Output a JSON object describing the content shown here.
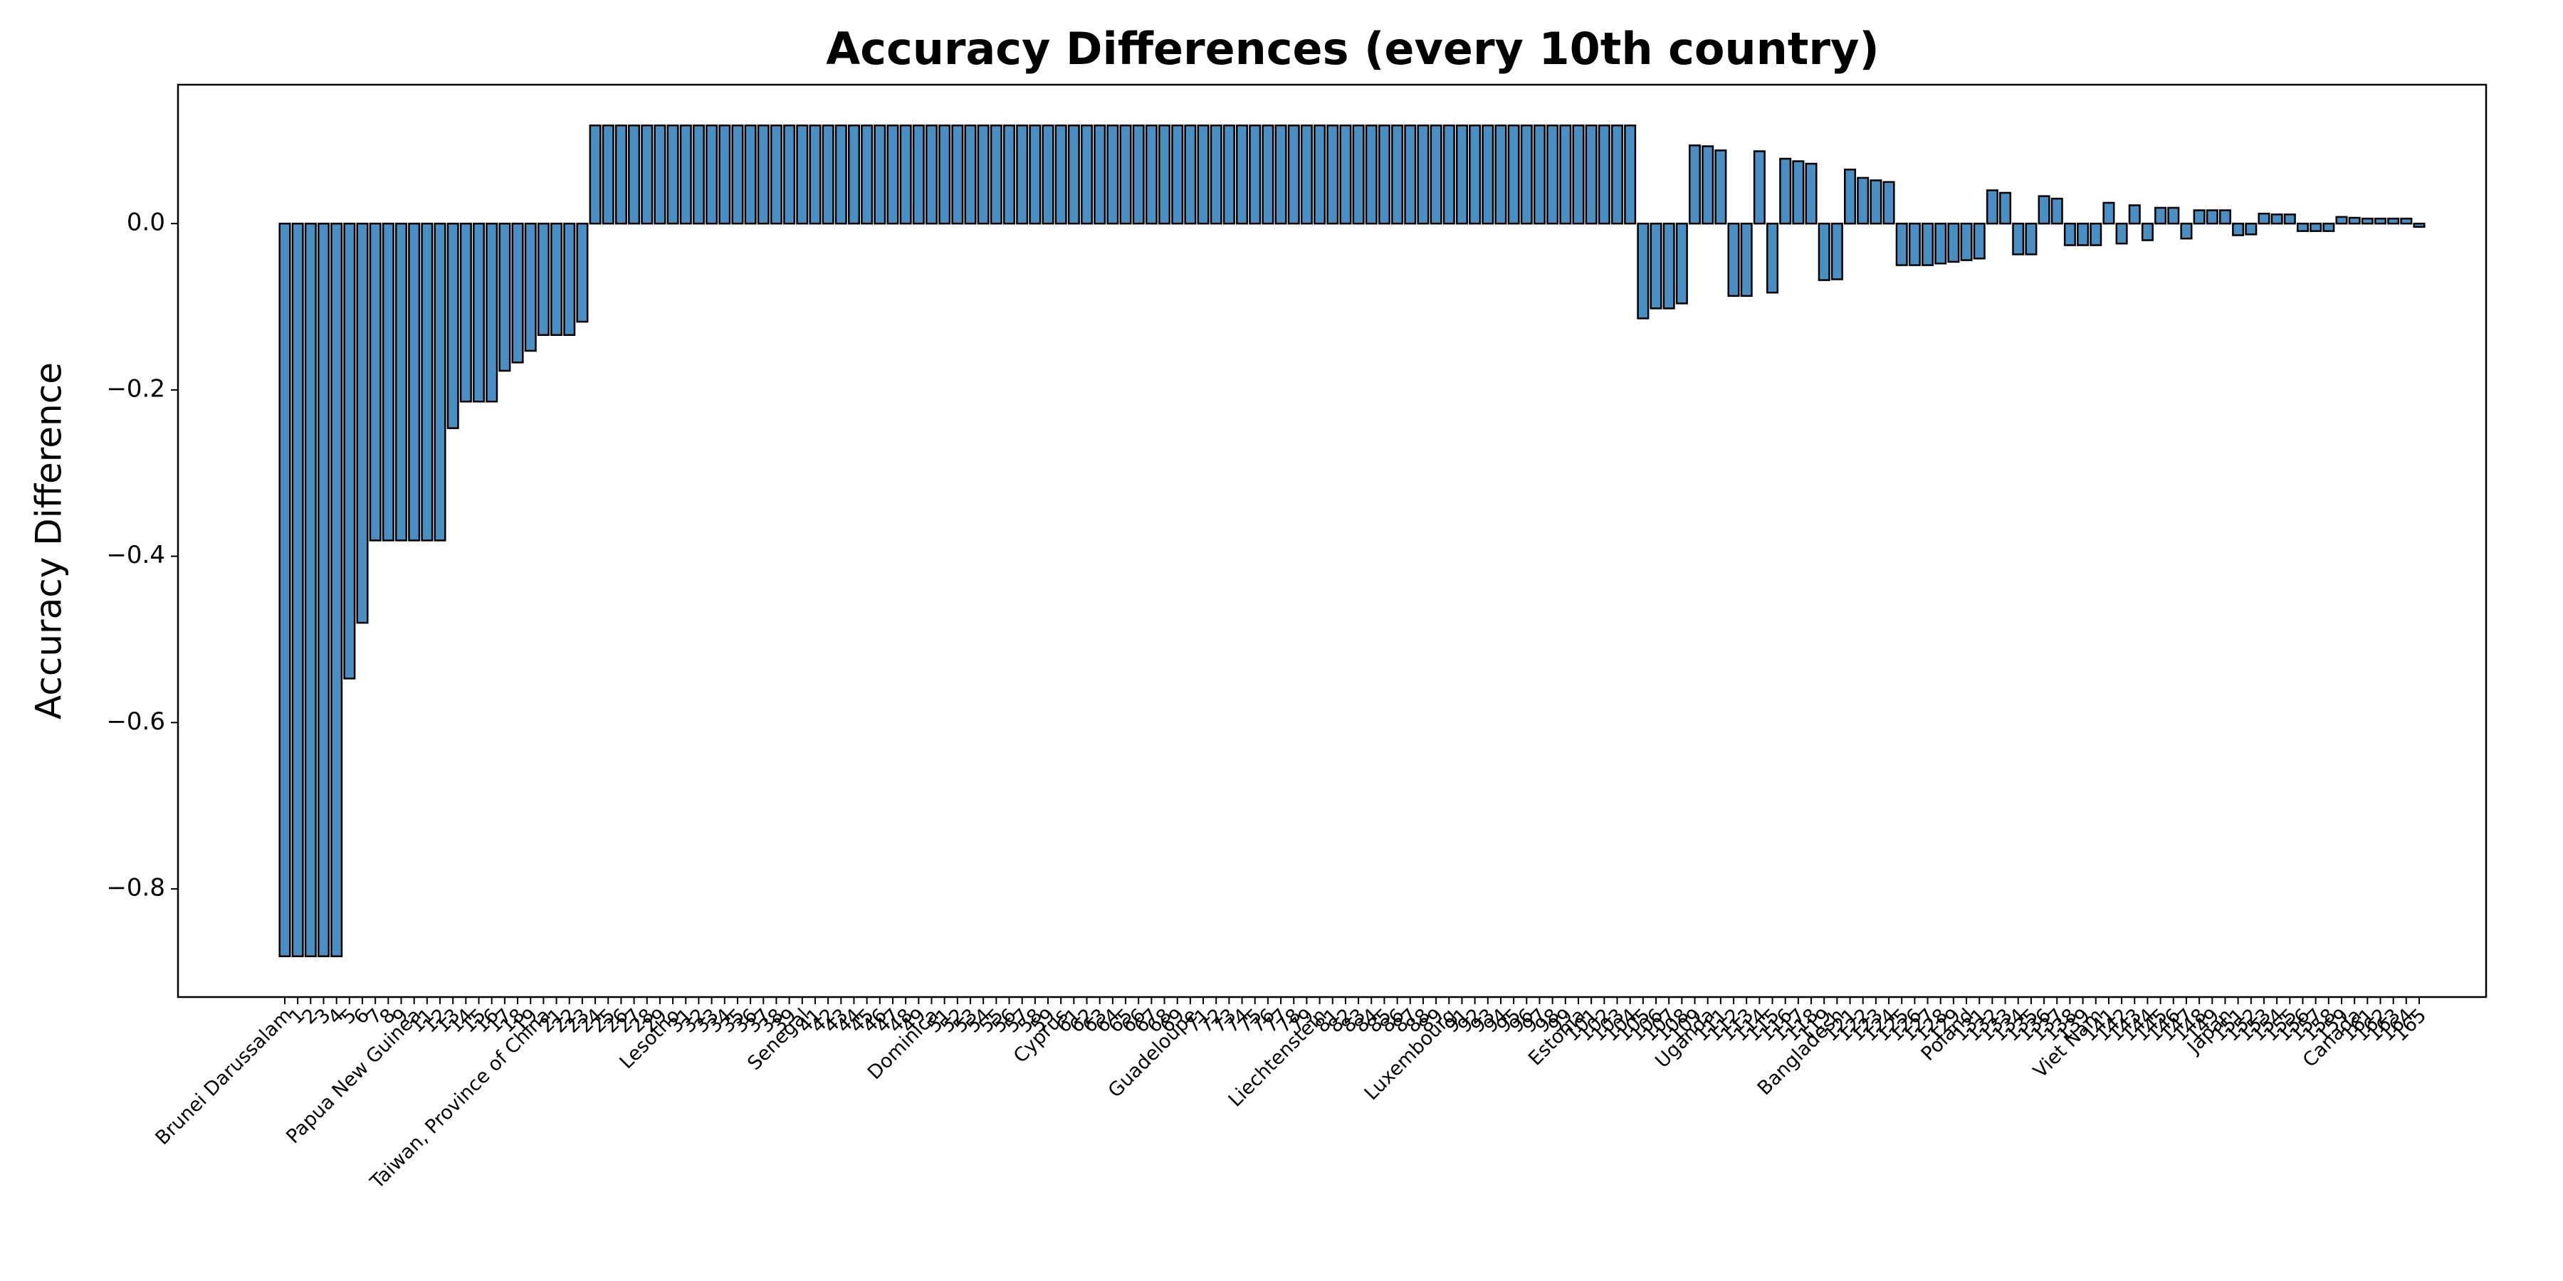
{
  "chart_data": {
    "type": "bar",
    "title": "Accuracy Differences (every 10th country)",
    "ylabel": "Accuracy Difference",
    "color": "#4a8fc4",
    "edgecolor": "#000000",
    "grid": false,
    "ylim": [
      -0.93,
      0.167
    ],
    "yticks": [
      {
        "value": -0.8,
        "label": "−0.8"
      },
      {
        "value": -0.6,
        "label": "−0.6"
      },
      {
        "value": -0.4,
        "label": "−0.4"
      },
      {
        "value": -0.2,
        "label": "−0.2"
      },
      {
        "value": 0,
        "label": "0.0"
      }
    ],
    "categories": [
      "Brunei Darussalam",
      "1",
      "2",
      "3",
      "4",
      "5",
      "6",
      "7",
      "8",
      "9",
      "Papua New Guinea",
      "11",
      "12",
      "13",
      "14",
      "15",
      "16",
      "17",
      "18",
      "19",
      "Taiwan, Province of China",
      "21",
      "22",
      "23",
      "24",
      "25",
      "26",
      "27",
      "28",
      "29",
      "Lesotho",
      "31",
      "32",
      "33",
      "34",
      "35",
      "36",
      "37",
      "38",
      "39",
      "Senegal",
      "41",
      "42",
      "43",
      "44",
      "45",
      "46",
      "47",
      "48",
      "49",
      "Dominica",
      "51",
      "52",
      "53",
      "54",
      "55",
      "56",
      "57",
      "58",
      "59",
      "Cyprus",
      "61",
      "62",
      "63",
      "64",
      "65",
      "66",
      "67",
      "68",
      "69",
      "Guadeloupe",
      "71",
      "72",
      "73",
      "74",
      "75",
      "76",
      "77",
      "78",
      "79",
      "Liechtenstein",
      "81",
      "82",
      "83",
      "84",
      "85",
      "86",
      "87",
      "88",
      "89",
      "Luxembourg",
      "91",
      "92",
      "93",
      "94",
      "95",
      "96",
      "97",
      "98",
      "99",
      "Estonia",
      "101",
      "102",
      "103",
      "104",
      "105",
      "106",
      "107",
      "108",
      "109",
      "Uganda",
      "111",
      "112",
      "113",
      "114",
      "115",
      "116",
      "117",
      "118",
      "119",
      "Bangladesh",
      "121",
      "122",
      "123",
      "124",
      "125",
      "126",
      "127",
      "128",
      "129",
      "Poland",
      "131",
      "132",
      "133",
      "134",
      "135",
      "136",
      "137",
      "138",
      "139",
      "Viet Nam",
      "141",
      "142",
      "143",
      "144",
      "145",
      "146",
      "147",
      "148",
      "149",
      "Japan",
      "151",
      "152",
      "153",
      "154",
      "155",
      "156",
      "157",
      "158",
      "159",
      "Canada",
      "161",
      "162",
      "163",
      "164",
      "165"
    ],
    "values": [
      -0.881,
      -0.881,
      -0.881,
      -0.881,
      -0.881,
      -0.547,
      -0.48,
      -0.381,
      -0.381,
      -0.381,
      -0.381,
      -0.381,
      -0.381,
      -0.246,
      -0.214,
      -0.214,
      -0.214,
      -0.177,
      -0.167,
      -0.153,
      -0.134,
      -0.134,
      -0.134,
      -0.118,
      0.118,
      0.118,
      0.118,
      0.118,
      0.118,
      0.118,
      0.118,
      0.118,
      0.118,
      0.118,
      0.118,
      0.118,
      0.118,
      0.118,
      0.118,
      0.118,
      0.118,
      0.118,
      0.118,
      0.118,
      0.118,
      0.118,
      0.118,
      0.118,
      0.118,
      0.118,
      0.118,
      0.118,
      0.118,
      0.118,
      0.118,
      0.118,
      0.118,
      0.118,
      0.118,
      0.118,
      0.118,
      0.118,
      0.118,
      0.118,
      0.118,
      0.118,
      0.118,
      0.118,
      0.118,
      0.118,
      0.118,
      0.118,
      0.118,
      0.118,
      0.118,
      0.118,
      0.118,
      0.118,
      0.118,
      0.118,
      0.118,
      0.118,
      0.118,
      0.118,
      0.118,
      0.118,
      0.118,
      0.118,
      0.118,
      0.118,
      0.118,
      0.118,
      0.118,
      0.118,
      0.118,
      0.118,
      0.118,
      0.118,
      0.118,
      0.118,
      0.118,
      0.118,
      0.118,
      0.118,
      0.118,
      -0.114,
      -0.102,
      -0.102,
      -0.096,
      0.094,
      0.093,
      0.088,
      -0.087,
      -0.087,
      0.087,
      -0.083,
      0.078,
      0.075,
      0.072,
      -0.068,
      -0.067,
      0.065,
      0.055,
      0.052,
      0.05,
      -0.05,
      -0.05,
      -0.05,
      -0.048,
      -0.046,
      -0.044,
      -0.042,
      0.04,
      0.037,
      -0.037,
      -0.037,
      0.033,
      0.03,
      -0.026,
      -0.026,
      -0.026,
      0.025,
      -0.024,
      0.022,
      -0.02,
      0.019,
      0.019,
      -0.018,
      0.016,
      0.016,
      0.016,
      -0.014,
      -0.013,
      0.012,
      0.011,
      0.011,
      -0.009,
      -0.009,
      -0.009,
      0.008,
      0.007,
      0.006,
      0.006,
      0.006,
      0.006,
      -0.004
    ]
  }
}
